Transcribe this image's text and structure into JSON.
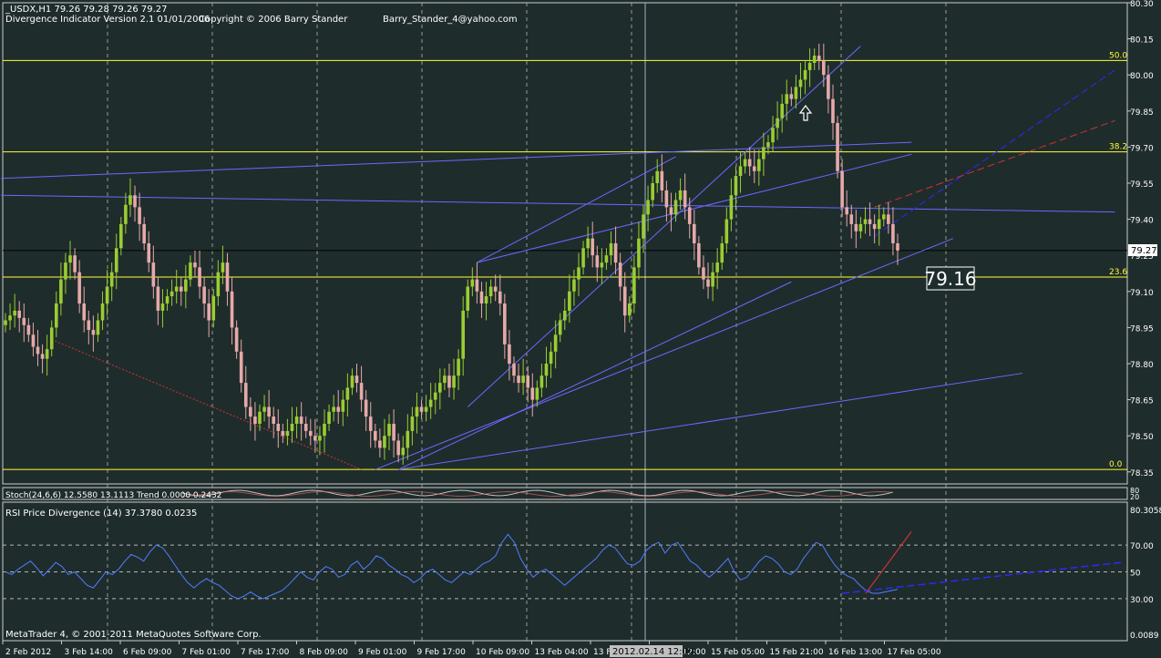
{
  "header": {
    "symbol_line": "_USDX,H1  79.26 79.28 79.26 79.27",
    "indicator": "Divergence Indicator Version 2.1  01/01/2006",
    "copyright": "Copyright © 2006 Barry Stander",
    "email": "Barry_Stander_4@yahoo.com"
  },
  "footer": {
    "copyright": "MetaTrader 4, © 2001-2011 MetaQuotes Software Corp."
  },
  "colors": {
    "background": "#1f2c2c",
    "bull_candle": "#9acd32",
    "bear_candle": "#e6a9a9",
    "fib": "#ffff33",
    "trend": "#6a6aff",
    "rsi": "#4f7fff",
    "grid": "#b4b4b4"
  },
  "chart_data": [
    {
      "type": "candlestick",
      "title": "_USDX,H1",
      "ylim": [
        78.3,
        80.3
      ],
      "y_ticks": [
        "80.30",
        "80.15",
        "80.00",
        "79.85",
        "79.70",
        "79.55",
        "79.40",
        "79.25",
        "79.10",
        "78.95",
        "78.80",
        "78.65",
        "78.50",
        "78.35"
      ],
      "x_ticks": [
        "2 Feb 2012",
        "3 Feb 14:00",
        "6 Feb 09:00",
        "7 Feb 01:00",
        "7 Feb 17:00",
        "8 Feb 09:00",
        "9 Feb 01:00",
        "9 Feb 17:00",
        "10 Feb 09:00",
        "13 Feb 04:00",
        "13 Feb 20:00",
        "14 Feb 12:00",
        "15 Feb 05:00",
        "15 Feb 21:00",
        "16 Feb 13:00",
        "17 Feb 05:00"
      ],
      "cursor_time_label": "2012.02.14 12:00",
      "current_price": "79.27",
      "current_price_value": 79.27,
      "annotation_price": "79.16",
      "fib_levels": [
        {
          "label": "50.0",
          "price": 80.06
        },
        {
          "label": "38.2",
          "price": 79.68
        },
        {
          "label": "23.6",
          "price": 79.16
        },
        {
          "label": "0.0",
          "price": 78.36
        }
      ],
      "close_series": [
        78.98,
        79.0,
        79.02,
        78.99,
        78.96,
        78.92,
        78.87,
        78.84,
        78.82,
        78.86,
        78.95,
        79.05,
        79.15,
        79.22,
        79.25,
        79.18,
        79.05,
        78.98,
        78.94,
        78.92,
        78.98,
        79.05,
        79.12,
        79.18,
        79.28,
        79.38,
        79.46,
        79.5,
        79.45,
        79.38,
        79.3,
        79.22,
        79.12,
        79.02,
        79.05,
        79.08,
        79.1,
        79.12,
        79.1,
        79.15,
        79.22,
        79.2,
        79.12,
        79.05,
        78.98,
        79.08,
        79.18,
        79.22,
        79.1,
        78.95,
        78.85,
        78.72,
        78.62,
        78.58,
        78.55,
        78.6,
        78.62,
        78.58,
        78.55,
        78.52,
        78.5,
        78.52,
        78.55,
        78.58,
        78.55,
        78.52,
        78.5,
        78.48,
        78.5,
        78.55,
        78.6,
        78.62,
        78.6,
        78.65,
        78.7,
        78.75,
        78.72,
        78.65,
        78.58,
        78.52,
        78.48,
        78.45,
        78.5,
        78.55,
        78.48,
        78.42,
        78.45,
        78.52,
        78.58,
        78.62,
        78.6,
        78.62,
        78.65,
        78.68,
        78.72,
        78.75,
        78.7,
        78.75,
        78.82,
        79.02,
        79.12,
        79.15,
        79.1,
        79.05,
        79.08,
        79.12,
        79.1,
        79.05,
        78.88,
        78.8,
        78.75,
        78.72,
        78.75,
        78.7,
        78.65,
        78.7,
        78.75,
        78.8,
        78.85,
        78.92,
        78.98,
        79.02,
        79.1,
        79.15,
        79.2,
        79.28,
        79.32,
        79.25,
        79.2,
        79.22,
        79.25,
        79.3,
        79.22,
        79.12,
        79.0,
        79.05,
        79.2,
        79.32,
        79.42,
        79.48,
        79.55,
        79.6,
        79.52,
        79.45,
        79.42,
        79.48,
        79.52,
        79.45,
        79.38,
        79.3,
        79.2,
        79.15,
        79.12,
        79.18,
        79.22,
        79.3,
        79.4,
        79.5,
        79.58,
        79.62,
        79.65,
        79.62,
        79.6,
        79.65,
        79.7,
        79.72,
        79.78,
        79.82,
        79.88,
        79.92,
        79.9,
        79.95,
        79.98,
        80.02,
        80.05,
        80.08,
        80.06,
        80.0,
        79.9,
        79.8,
        79.6,
        79.45,
        79.42,
        79.38,
        79.35,
        79.38,
        79.4,
        79.38,
        79.36,
        79.4,
        79.42,
        79.38,
        79.3,
        79.27
      ],
      "rsi_series": [
        50,
        48,
        52,
        55,
        58,
        53,
        47,
        52,
        57,
        54,
        48,
        50,
        45,
        40,
        38,
        44,
        50,
        48,
        52,
        58,
        63,
        61,
        58,
        65,
        70,
        68,
        62,
        55,
        48,
        42,
        38,
        42,
        45,
        42,
        40,
        36,
        32,
        30,
        32,
        35,
        32,
        30,
        32,
        34,
        36,
        40,
        45,
        50,
        46,
        44,
        50,
        54,
        52,
        46,
        48,
        55,
        58,
        52,
        56,
        62,
        60,
        55,
        52,
        48,
        46,
        42,
        45,
        50,
        52,
        48,
        44,
        42,
        46,
        50,
        48,
        52,
        56,
        58,
        62,
        72,
        78,
        72,
        60,
        52,
        46,
        50,
        52,
        48,
        44,
        40,
        44,
        48,
        52,
        56,
        60,
        66,
        70,
        68,
        62,
        56,
        55,
        58,
        66,
        70,
        72,
        64,
        70,
        72,
        65,
        58,
        55,
        50,
        46,
        50,
        55,
        60,
        50,
        44,
        46,
        52,
        58,
        62,
        60,
        56,
        50,
        48,
        52,
        60,
        66,
        72,
        70,
        62,
        55,
        50,
        47,
        45,
        40,
        36,
        34,
        34,
        35,
        36,
        37
      ],
      "rsi_label": "RSI Price Divergence (14) 37.3780 0.0235",
      "stoch_label": "Stoch(24,6,6) 12.5580 13.1113   Trend  0.0000  0.2432",
      "rsi_ticks": [
        "70.00",
        "50",
        "30.00"
      ],
      "rsi_top_label": "80.3058",
      "rsi_bottom_label": "0.0089",
      "stoch_ticks": [
        "80",
        "20"
      ]
    }
  ]
}
